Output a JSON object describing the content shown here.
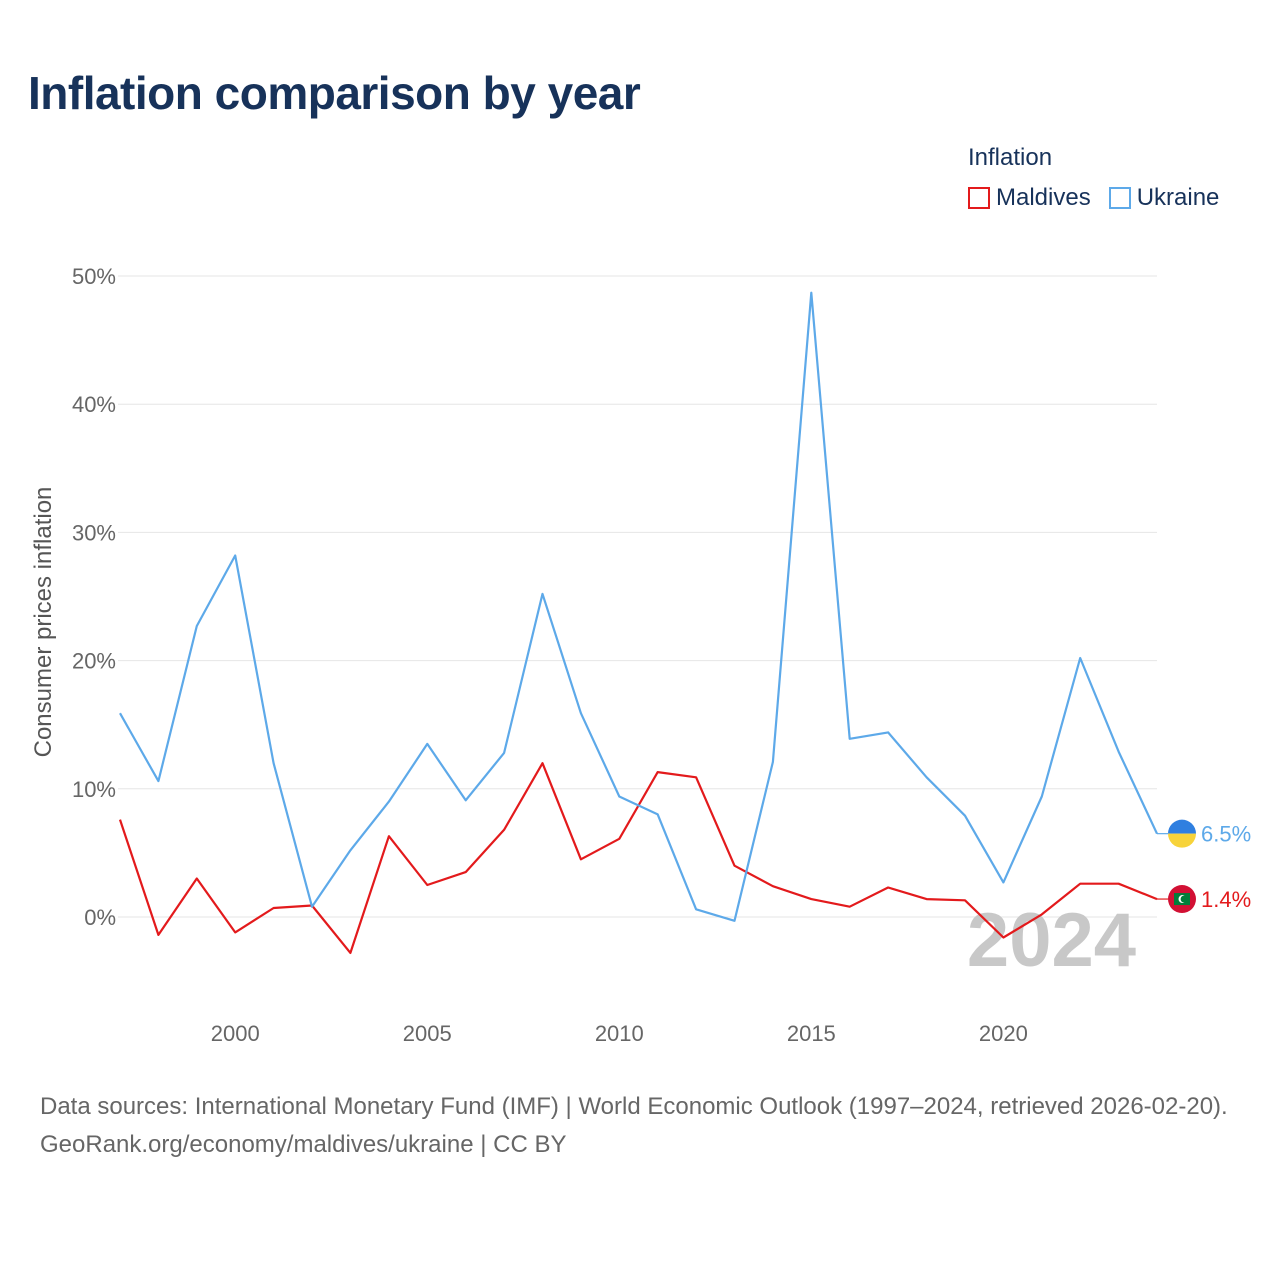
{
  "title": "Inflation comparison by year",
  "legend": {
    "title": "Inflation",
    "items": [
      {
        "label": "Maldives",
        "color": "#e31a1c"
      },
      {
        "label": "Ukraine",
        "color": "#5da9e9"
      }
    ]
  },
  "chart_data": {
    "type": "line",
    "title": "Inflation comparison by year",
    "ylabel": "Consumer prices inflation",
    "xlabel": "",
    "x": [
      1997,
      1998,
      1999,
      2000,
      2001,
      2002,
      2003,
      2004,
      2005,
      2006,
      2007,
      2008,
      2009,
      2010,
      2011,
      2012,
      2013,
      2014,
      2015,
      2016,
      2017,
      2018,
      2019,
      2020,
      2021,
      2022,
      2023,
      2024
    ],
    "xlim": [
      1997,
      2024
    ],
    "ylim": [
      -8,
      50
    ],
    "x_ticks": [
      2000,
      2005,
      2010,
      2015,
      2020
    ],
    "x_tick_labels": [
      "2000",
      "2005",
      "2010",
      "2015",
      "2020"
    ],
    "y_ticks": [
      0,
      10,
      20,
      30,
      40,
      50
    ],
    "y_tick_labels": [
      "0%",
      "10%",
      "20%",
      "30%",
      "40%",
      "50%"
    ],
    "grid": true,
    "series": [
      {
        "name": "Maldives",
        "color": "#e31a1c",
        "values": [
          7.6,
          -1.4,
          3.0,
          -1.2,
          0.7,
          0.9,
          -2.8,
          6.3,
          2.5,
          3.5,
          6.8,
          12.0,
          4.5,
          6.1,
          11.3,
          10.9,
          4.0,
          2.4,
          1.4,
          0.8,
          2.3,
          1.4,
          1.3,
          -1.6,
          0.2,
          2.6,
          2.6,
          1.4
        ],
        "end_label": "1.4%"
      },
      {
        "name": "Ukraine",
        "color": "#5da9e9",
        "values": [
          15.9,
          10.6,
          22.7,
          28.2,
          12.0,
          0.8,
          5.2,
          9.0,
          13.5,
          9.1,
          12.8,
          25.2,
          15.9,
          9.4,
          8.0,
          0.6,
          -0.3,
          12.1,
          48.7,
          13.9,
          14.4,
          10.9,
          7.9,
          2.7,
          9.4,
          20.2,
          12.9,
          6.5
        ],
        "end_label": "6.5%"
      }
    ],
    "watermark_year": "2024"
  },
  "footer": {
    "sources": "Data sources: International Monetary Fund (IMF) | World Economic Outlook (1997–2024, retrieved 2026-02-20).",
    "credit": "GeoRank.org/economy/maldives/ukraine | CC BY"
  }
}
